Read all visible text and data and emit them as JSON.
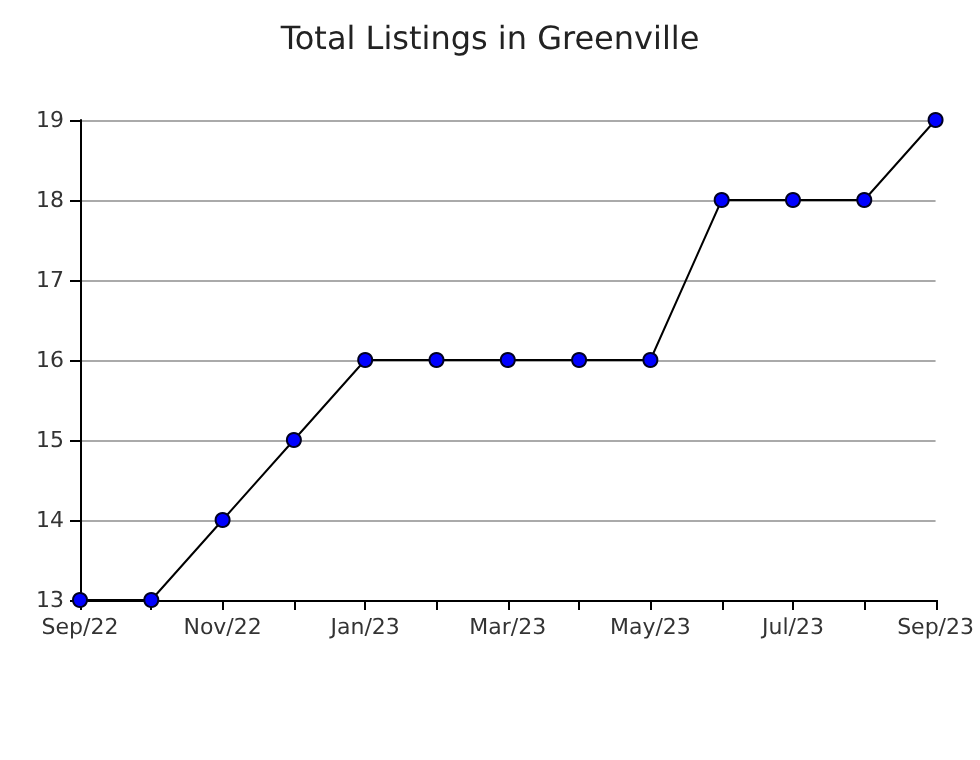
{
  "chart_data": {
    "type": "line",
    "title": "Total Listings in Greenville",
    "categories": [
      "Sep/22",
      null,
      "Nov/22",
      null,
      "Jan/23",
      null,
      "Mar/23",
      null,
      "May/23",
      null,
      "Jul/23",
      null,
      "Sep/23"
    ],
    "series": [
      {
        "color": "#0000ff",
        "values": [
          13,
          13,
          14,
          15,
          16,
          16,
          16,
          16,
          16,
          18,
          18,
          18,
          19
        ]
      }
    ],
    "ylim": [
      13,
      19
    ],
    "yticks": [
      13,
      14,
      15,
      16,
      17,
      18,
      19
    ],
    "grid": "y",
    "marker": "circle",
    "line_style": "solid"
  }
}
